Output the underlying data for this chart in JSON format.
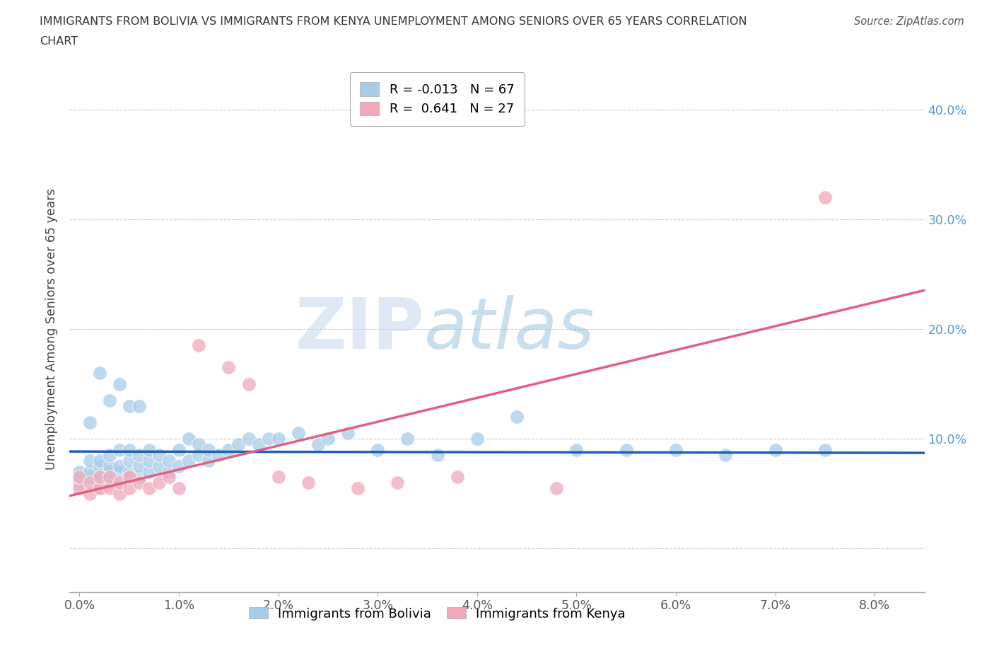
{
  "title": "IMMIGRANTS FROM BOLIVIA VS IMMIGRANTS FROM KENYA UNEMPLOYMENT AMONG SENIORS OVER 65 YEARS CORRELATION\nCHART",
  "source": "Source: ZipAtlas.com",
  "ylabel_label": "Unemployment Among Seniors over 65 years",
  "xlim": [
    -0.001,
    0.085
  ],
  "ylim": [
    -0.04,
    0.44
  ],
  "bolivia_color": "#a8cce8",
  "kenya_color": "#f0a8ba",
  "bolivia_line_color": "#2060b0",
  "kenya_line_color": "#e06080",
  "bolivia_R": -0.013,
  "bolivia_N": 67,
  "kenya_R": 0.641,
  "kenya_N": 27,
  "bolivia_points_x": [
    0.0,
    0.0,
    0.001,
    0.001,
    0.001,
    0.002,
    0.002,
    0.002,
    0.002,
    0.003,
    0.003,
    0.003,
    0.003,
    0.004,
    0.004,
    0.004,
    0.004,
    0.005,
    0.005,
    0.005,
    0.005,
    0.006,
    0.006,
    0.006,
    0.007,
    0.007,
    0.007,
    0.008,
    0.008,
    0.009,
    0.009,
    0.01,
    0.01,
    0.011,
    0.011,
    0.012,
    0.012,
    0.013,
    0.013,
    0.014,
    0.015,
    0.016,
    0.017,
    0.018,
    0.019,
    0.02,
    0.022,
    0.024,
    0.025,
    0.027,
    0.03,
    0.033,
    0.036,
    0.04,
    0.044,
    0.05,
    0.055,
    0.06,
    0.065,
    0.07,
    0.075,
    0.001,
    0.002,
    0.003,
    0.004,
    0.005,
    0.006
  ],
  "bolivia_points_y": [
    0.06,
    0.07,
    0.065,
    0.07,
    0.08,
    0.055,
    0.065,
    0.075,
    0.08,
    0.06,
    0.07,
    0.075,
    0.085,
    0.06,
    0.07,
    0.075,
    0.09,
    0.065,
    0.07,
    0.08,
    0.09,
    0.065,
    0.075,
    0.085,
    0.07,
    0.08,
    0.09,
    0.075,
    0.085,
    0.07,
    0.08,
    0.075,
    0.09,
    0.08,
    0.1,
    0.085,
    0.095,
    0.08,
    0.09,
    0.085,
    0.09,
    0.095,
    0.1,
    0.095,
    0.1,
    0.1,
    0.105,
    0.095,
    0.1,
    0.105,
    0.09,
    0.1,
    0.085,
    0.1,
    0.12,
    0.09,
    0.09,
    0.09,
    0.085,
    0.09,
    0.09,
    0.115,
    0.16,
    0.135,
    0.15,
    0.13,
    0.13
  ],
  "kenya_points_x": [
    0.0,
    0.0,
    0.001,
    0.001,
    0.002,
    0.002,
    0.003,
    0.003,
    0.004,
    0.004,
    0.005,
    0.005,
    0.006,
    0.007,
    0.008,
    0.009,
    0.01,
    0.012,
    0.015,
    0.017,
    0.02,
    0.023,
    0.028,
    0.032,
    0.038,
    0.048,
    0.075
  ],
  "kenya_points_y": [
    0.055,
    0.065,
    0.05,
    0.06,
    0.055,
    0.065,
    0.055,
    0.065,
    0.05,
    0.06,
    0.055,
    0.065,
    0.06,
    0.055,
    0.06,
    0.065,
    0.055,
    0.185,
    0.165,
    0.15,
    0.065,
    0.06,
    0.055,
    0.06,
    0.065,
    0.055,
    0.32
  ],
  "grid_color": "#cccccc",
  "background_color": "#ffffff",
  "right_tick_color": "#5599cc",
  "x_tick_vals": [
    0.0,
    0.01,
    0.02,
    0.03,
    0.04,
    0.05,
    0.06,
    0.07,
    0.08
  ],
  "x_tick_labels": [
    "0.0%",
    "1.0%",
    "2.0%",
    "3.0%",
    "4.0%",
    "5.0%",
    "6.0%",
    "7.0%",
    "8.0%"
  ],
  "y_tick_vals": [
    0.0,
    0.1,
    0.2,
    0.3,
    0.4
  ],
  "y_tick_labels_left": [
    "",
    "",
    "",
    "",
    ""
  ],
  "y_tick_labels_right": [
    "",
    "10.0%",
    "20.0%",
    "30.0%",
    "40.0%"
  ]
}
